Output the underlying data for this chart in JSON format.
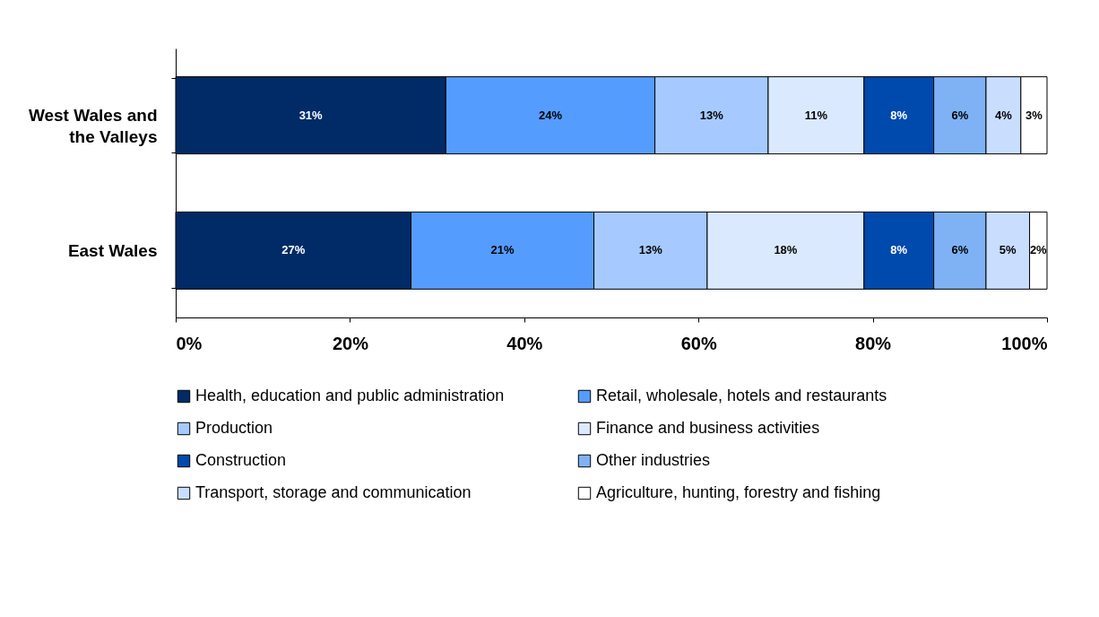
{
  "chart_data": {
    "type": "bar",
    "orientation": "horizontal",
    "stacked": true,
    "categories": [
      "West Wales and the Valleys",
      "East Wales"
    ],
    "xlim": [
      0,
      100
    ],
    "xticks": [
      {
        "value": 0,
        "label": "0%"
      },
      {
        "value": 20,
        "label": "20%"
      },
      {
        "value": 40,
        "label": "40%"
      },
      {
        "value": 60,
        "label": "60%"
      },
      {
        "value": 80,
        "label": "80%"
      },
      {
        "value": 100,
        "label": "100%"
      }
    ],
    "grid": false,
    "legend": "bottom",
    "series": [
      {
        "name": "Health, education and public administration",
        "color": "#002b66",
        "values": [
          31,
          27
        ],
        "value_labels": [
          "31%",
          "27%"
        ]
      },
      {
        "name": "Retail, wholesale, hotels and restaurants",
        "color": "#559cff",
        "values": [
          24,
          21
        ],
        "value_labels": [
          "24%",
          "21%"
        ]
      },
      {
        "name": "Production",
        "color": "#a6caff",
        "values": [
          13,
          13
        ],
        "value_labels": [
          "13%",
          "13%"
        ]
      },
      {
        "name": "Finance and business activities",
        "color": "#dbe9ff",
        "values": [
          11,
          18
        ],
        "value_labels": [
          "11%",
          "18%"
        ]
      },
      {
        "name": "Construction",
        "color": "#004aad",
        "values": [
          8,
          8
        ],
        "value_labels": [
          "8%",
          "8%"
        ]
      },
      {
        "name": "Other industries",
        "color": "#7fb2f5",
        "values": [
          6,
          6
        ],
        "value_labels": [
          "6%",
          "6%"
        ]
      },
      {
        "name": "Transport, storage and communication",
        "color": "#c9ddff",
        "values": [
          4,
          5
        ],
        "value_labels": [
          "4%",
          "5%"
        ]
      },
      {
        "name": "Agriculture, hunting, forestry and fishing",
        "color": "#ffffff",
        "values": [
          3,
          2
        ],
        "value_labels": [
          "3%",
          "2%"
        ]
      }
    ]
  }
}
